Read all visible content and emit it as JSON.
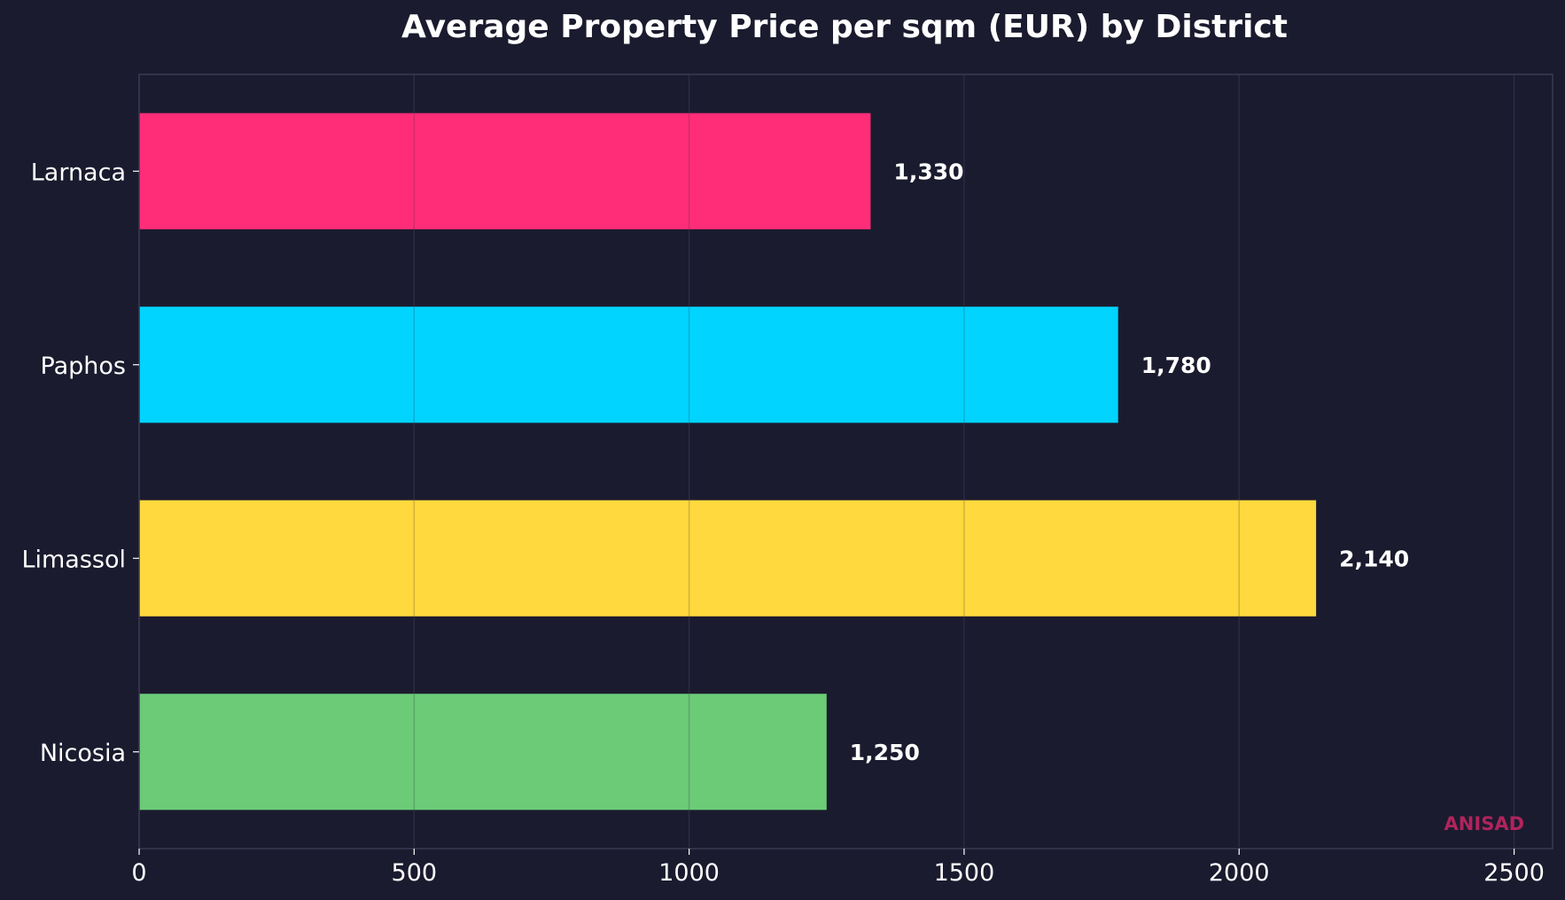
{
  "chart_data": {
    "type": "bar",
    "orientation": "horizontal",
    "title": "Average Property Price per sqm (EUR) by District",
    "xlabel": "",
    "ylabel": "",
    "categories": [
      "Larnaca",
      "Paphos",
      "Limassol",
      "Nicosia"
    ],
    "values": [
      1330,
      1780,
      2140,
      1250
    ],
    "value_labels": [
      "1,330",
      "1,780",
      "2,140",
      "1,250"
    ],
    "colors": [
      "#ff2d78",
      "#00d4ff",
      "#ffd93d",
      "#6bcb77"
    ],
    "xlim": [
      0,
      2570
    ],
    "xticks": [
      0,
      500,
      1000,
      1500,
      2000,
      2500
    ],
    "grid": true,
    "legend": "none"
  },
  "watermark": "ANISAD",
  "theme": {
    "background": "#1b1b2f",
    "text": "#ffffff",
    "watermark_color": "#b0245c"
  }
}
